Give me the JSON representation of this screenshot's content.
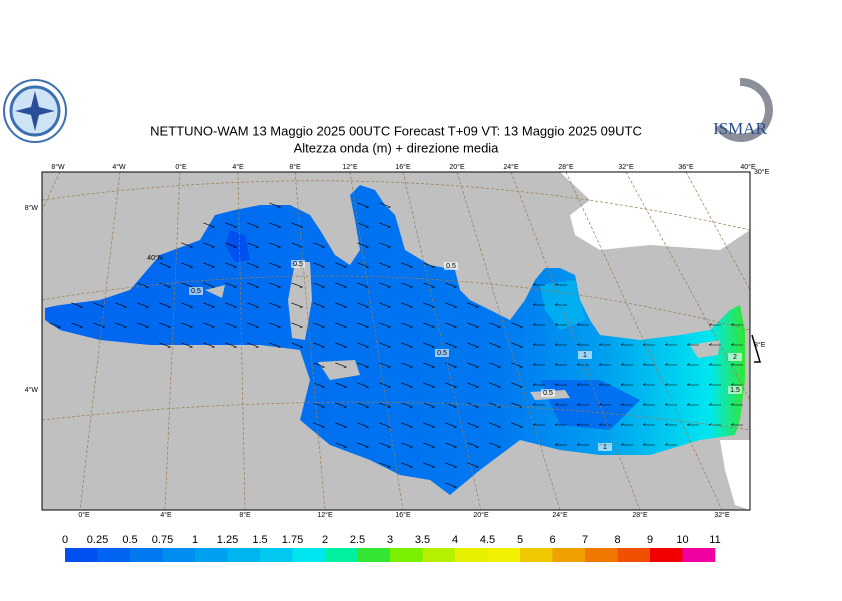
{
  "header": {
    "title": "NETTUNO-WAM  13   Maggio  2025 00UTC Forecast T+09 VT: 13   Maggio  2025 09UTC",
    "subtitle": "Altezza onda (m) + direzione media"
  },
  "logo": {
    "text": "ISMAR"
  },
  "map": {
    "top_labels": [
      "8°W",
      "4°W",
      "0°E",
      "4°E",
      "8°E",
      "12°E",
      "16°E",
      "20°E",
      "24°E",
      "28°E",
      "32°E",
      "36°E",
      "40°E"
    ],
    "bottom_labels": [
      "0°E",
      "4°E",
      "8°E",
      "12°E",
      "16°E",
      "20°E",
      "24°E",
      "28°E",
      "32°E"
    ],
    "left_labels": [
      "8°W",
      "4°W"
    ],
    "right_labels": [
      "30°E",
      "8°E"
    ],
    "lat_label": "40°N",
    "contour_labels": [
      "0.5",
      "0.5",
      "0.5",
      "0.5",
      "0.5",
      "1",
      "1",
      "1.5",
      "2"
    ]
  },
  "colorbar": {
    "labels": [
      0,
      0.25,
      0.5,
      0.75,
      1,
      1.25,
      1.5,
      1.75,
      2,
      2.5,
      3,
      3.5,
      4,
      4.5,
      5,
      6,
      7,
      8,
      9,
      10,
      11
    ],
    "colors": [
      "#0050f0",
      "#0064f0",
      "#0078f0",
      "#008cf0",
      "#00a0f0",
      "#00b4f0",
      "#00c8f0",
      "#00e6f0",
      "#00f0a0",
      "#32e632",
      "#78f000",
      "#b4f000",
      "#e6f000",
      "#f0f000",
      "#f0c800",
      "#f0a000",
      "#f07800",
      "#f05000",
      "#f00000",
      "#f000a0"
    ]
  }
}
